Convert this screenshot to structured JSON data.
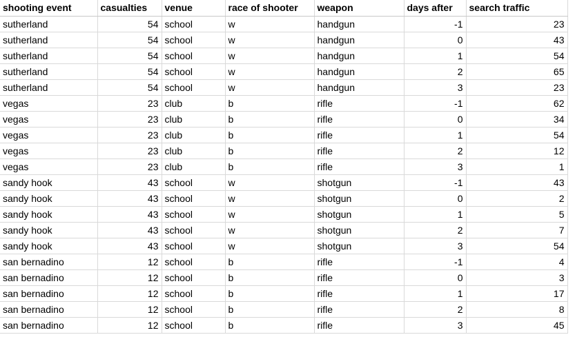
{
  "sheet": {
    "headers": [
      "shooting event",
      "casualties",
      "venue",
      "race of shooter",
      "weapon",
      "days after",
      "search traffic"
    ],
    "rows": [
      [
        "sutherland",
        "54",
        "school",
        "w",
        "handgun",
        "-1",
        "23"
      ],
      [
        "sutherland",
        "54",
        "school",
        "w",
        "handgun",
        "0",
        "43"
      ],
      [
        "sutherland",
        "54",
        "school",
        "w",
        "handgun",
        "1",
        "54"
      ],
      [
        "sutherland",
        "54",
        "school",
        "w",
        "handgun",
        "2",
        "65"
      ],
      [
        "sutherland",
        "54",
        "school",
        "w",
        "handgun",
        "3",
        "23"
      ],
      [
        "vegas",
        "23",
        "club",
        "b",
        "rifle",
        "-1",
        "62"
      ],
      [
        "vegas",
        "23",
        "club",
        "b",
        "rifle",
        "0",
        "34"
      ],
      [
        "vegas",
        "23",
        "club",
        "b",
        "rifle",
        "1",
        "54"
      ],
      [
        "vegas",
        "23",
        "club",
        "b",
        "rifle",
        "2",
        "12"
      ],
      [
        "vegas",
        "23",
        "club",
        "b",
        "rifle",
        "3",
        "1"
      ],
      [
        "sandy hook",
        "43",
        "school",
        "w",
        "shotgun",
        "-1",
        "43"
      ],
      [
        "sandy hook",
        "43",
        "school",
        "w",
        "shotgun",
        "0",
        "2"
      ],
      [
        "sandy hook",
        "43",
        "school",
        "w",
        "shotgun",
        "1",
        "5"
      ],
      [
        "sandy hook",
        "43",
        "school",
        "w",
        "shotgun",
        "2",
        "7"
      ],
      [
        "sandy hook",
        "43",
        "school",
        "w",
        "shotgun",
        "3",
        "54"
      ],
      [
        "san bernadino",
        "12",
        "school",
        "b",
        "rifle",
        "-1",
        "4"
      ],
      [
        "san bernadino",
        "12",
        "school",
        "b",
        "rifle",
        "0",
        "3"
      ],
      [
        "san bernadino",
        "12",
        "school",
        "b",
        "rifle",
        "1",
        "17"
      ],
      [
        "san bernadino",
        "12",
        "school",
        "b",
        "rifle",
        "2",
        "8"
      ],
      [
        "san bernadino",
        "12",
        "school",
        "b",
        "rifle",
        "3",
        "45"
      ]
    ]
  }
}
